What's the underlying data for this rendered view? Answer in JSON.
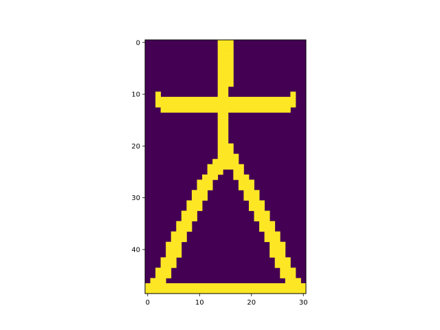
{
  "chart_data": {
    "type": "heatmap",
    "title": "",
    "xlabel": "",
    "ylabel": "",
    "grid": false,
    "colorscale": {
      "low": "#440154",
      "high": "#fde725"
    },
    "value_range": [
      0,
      1
    ],
    "n_cols": 31,
    "n_rows": 49,
    "xlim": [
      -0.5,
      30.5
    ],
    "ylim": [
      48.5,
      -0.5
    ],
    "x_ticks": [
      0,
      10,
      20,
      30
    ],
    "x_tick_labels": [
      "0",
      "10",
      "20",
      "30"
    ],
    "y_ticks": [
      0,
      10,
      20,
      30,
      40
    ],
    "y_tick_labels": [
      "0",
      "10",
      "20",
      "30",
      "40"
    ],
    "rows": [
      "..............###..............",
      "..............###..............",
      "..............###..............",
      "..............###..............",
      "..............###..............",
      "..............###..............",
      "..............###..............",
      "..............###..............",
      "..............###..............",
      "..............##...............",
      "..#...........##............#..",
      "..###########################..",
      "..###########################..",
      "...#########################...",
      "..............##...............",
      "..............##...............",
      "..............##...............",
      "..............##...............",
      "..............##...............",
      "..............##...............",
      "..............###..............",
      "..............###..............",
      "..............####.............",
      ".............#####.............",
      "............#######............",
      "............###..##............",
      "...........###...###...........",
      "..........###.....###..........",
      "..........###.....###..........",
      ".........###.......###.........",
      ".........###.......###.........",
      "........###.........###........",
      "........###.........###........",
      ".......###...........###.......",
      ".......###...........###.......",
      "......###.............###......",
      "......###.............###......",
      ".....###...............###.....",
      ".....###...............###.....",
      "....###.................###....",
      "....###.................###....",
      "....###.................###....",
      "...###...................###...",
      "...###...................###...",
      "..###.....................###..",
      "..###.....................###..",
      ".###.......................###.",
      "###############################",
      "###############################"
    ]
  }
}
